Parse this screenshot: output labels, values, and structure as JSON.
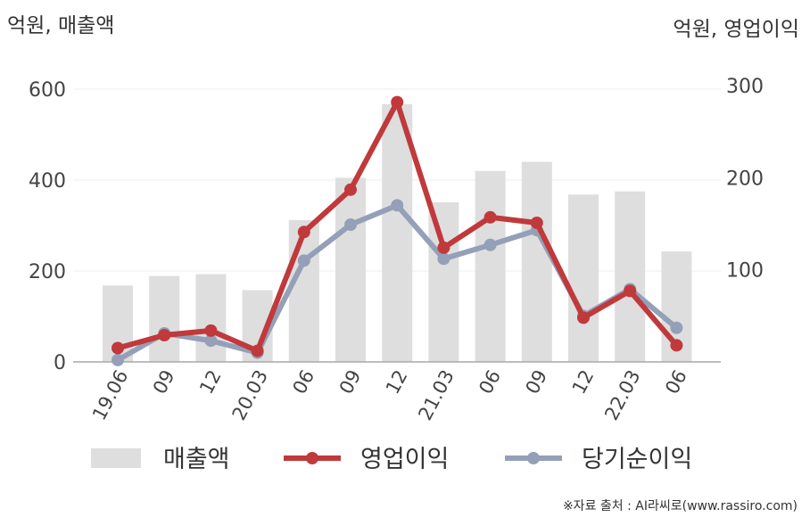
{
  "chart_data": {
    "type": "bar+line",
    "left_unit": "억원, 매출액",
    "right_unit": "억원, 영업이익",
    "categories": [
      "19.06",
      "09",
      "12",
      "20.03",
      "06",
      "09",
      "12",
      "21.03",
      "06",
      "09",
      "12",
      "22.03",
      "06"
    ],
    "y_left": {
      "ticks": [
        0,
        200,
        400,
        600
      ],
      "range": [
        0,
        600
      ]
    },
    "y_right": {
      "ticks": [
        100,
        200,
        300
      ],
      "range": [
        0,
        300
      ]
    },
    "series": [
      {
        "name": "매출액",
        "kind": "bar",
        "axis": "left",
        "color": "#dedede",
        "values": [
          168,
          189,
          193,
          158,
          312,
          405,
          567,
          351,
          420,
          440,
          368,
          375,
          243
        ]
      },
      {
        "name": "영업이익",
        "kind": "line",
        "axis": "right",
        "color": "#c0393b",
        "values": [
          15,
          29,
          34,
          12,
          141,
          187,
          282,
          124,
          157,
          151,
          48,
          77,
          18
        ]
      },
      {
        "name": "당기순이익",
        "kind": "line",
        "axis": "right",
        "color": "#94a0b8",
        "values": [
          2,
          31,
          23,
          10,
          110,
          149,
          170,
          112,
          127,
          143,
          50,
          79,
          37
        ]
      }
    ],
    "grid": true,
    "legend_position": "bottom",
    "source": "※자료 출처 : AI라씨로(www.rassiro.com)"
  }
}
